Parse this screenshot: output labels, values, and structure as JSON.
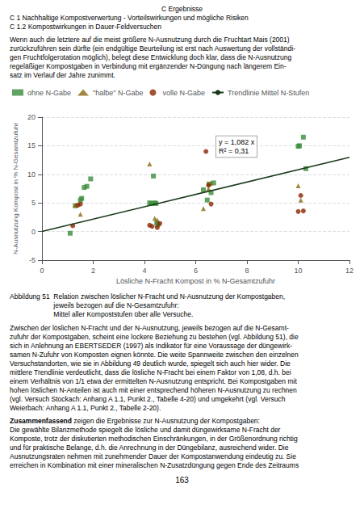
{
  "header": [
    "C Ergebnisse",
    "C 1 Nachhaltige Kompostverwertung - Vorteilswirkungen und mögliche Risiken",
    "C 1.2 Kompostwirkungen in Dauer-Feldversuchen"
  ],
  "text_before": "Wenn auch die letztere auf die meist größere N-Ausnutzung durch die Fruchtart Mais (2001)\nzurückzuführen sein dürfte (ein endgültige Beurteilung ist erst nach Auswertung der vollständi-\ngen Fruchtfolgerotation möglich), belegt diese Entwicklung doch klar, dass die N-Ausnutzung\nregeläßiger Kompostgaben in Verbindung mit ergänzender N-Düngung nach längerem Ein-\nsatz im Verlauf der Jahre zunimmt.",
  "caption": [
    "Abbildung 51  Relation zwischen löslicher N-Fracht und N-Ausnutzung der Kompostgaben,",
    "                       jeweils bezogen auf die N-Gesamtzufuhr:",
    "                       Mittel aller Kompoststufen über alle Versuche."
  ],
  "text_after": "Zwischen der löslichen N-Fracht und der N-Ausnutzung, jeweils bezogen auf die N-Gesamt-\nzufuhr der Kompostgaben, scheint eine lockere Beziehung zu bestehen (vgl. Abbildung 51), die\nsich in Anlehnung an EBERTSEDER (1997) als Indikator für eine Voraussage der düngewirk-\nsamen N-Zufuhr von Komposten eignen könnte. Die weite Spannweite zwischen den einzelnen\nVersuchstandorten, wie sie in Abbildung 49 deutlich wurde, spiegelt sich auch hier wider. Die\nmittlere Trendlinie verdeutlicht, dass die lösliche N-Fracht bei einem Faktor von 1,08, d.h. bei\neinem Verhältnis von 1/1 etwa der ermittelten N-Ausnutzung entspricht. Bei Kompostgaben mit\nhohen löslichen N-Anteilen ist auch mit einer entsprechend höheren N-Ausnutzung zu rechnen\n(vgl. Versuch Stockach: Anhang A 1.1, Punkt 2., Tabelle 4-20) und umgekehrt (vgl. Versuch\nWeierbach: Anhang A 1.1, Punkt 2., Tabelle 2-20).",
  "summary_bold": "Zusammenfassend",
  "summary": " zeigen die Ergebnisse zur N-Ausnutzung der Kompostgaben:",
  "text_end": "Die gewählte Bilanzmethode spiegelt die lösliche und damit düngewirksame N-Fracht der\nKomposte, trotz der diskutierten methodischen Einschränkungen, in der Größenordnung richtig\nund für praktische Belange, d.h. die Anrechnung in der Düngebilanz, ausreichend wider. Die\nAusnutzungsraten nehmen mit zunehmender Dauer der Kompostanwendung eindeutig zu. Sie\nerreichen in Kombination mit einer mineralischen N-Zusatzdüngung gegen Ende des Zeitraums",
  "page_number": "163",
  "chart_data": {
    "type": "scatter",
    "xlabel": "Lösliche N-Fracht Kompost in % N-Gesamtzufuhr",
    "ylabel": "N-Ausnutzung Kompost in % N-Gesamtzufuhr",
    "xlim": [
      0,
      12
    ],
    "ylim": [
      -5,
      20
    ],
    "xticks": [
      0,
      2,
      4,
      6,
      8,
      10,
      12
    ],
    "yticks": [
      -5,
      0,
      5,
      10,
      15,
      20
    ],
    "grid": true,
    "legend": "upper left",
    "series": [
      {
        "name": "ohne N-Gabe",
        "color": "#3A8C3A",
        "marker": "square",
        "x": [
          1.1,
          1.3,
          1.5,
          1.55,
          1.65,
          1.75,
          1.9,
          4.2,
          4.28,
          4.35,
          4.4,
          4.45,
          4.48,
          4.52,
          6.3,
          6.45,
          6.52,
          6.6,
          6.7,
          10.0,
          10.05,
          10.2,
          10.3
        ],
        "values": [
          -0.3,
          4.5,
          5.5,
          5.8,
          7.7,
          7.9,
          9.2,
          5.0,
          4.9,
          9.7,
          5.0,
          4.9,
          1.5,
          1.2,
          7.3,
          5.5,
          8.3,
          6.8,
          8.5,
          14.9,
          15.0,
          16.5,
          11.0
        ]
      },
      {
        "name": "\"halbe\" N-Gabe",
        "color": "#8B6914",
        "marker": "triangle",
        "x": [
          1.3,
          1.5,
          4.2,
          4.4,
          4.5,
          6.3,
          6.5,
          6.6,
          10.0,
          10.1
        ],
        "values": [
          4.6,
          3.0,
          11.8,
          2.3,
          2.0,
          4.0,
          7.5,
          8.5,
          8.0,
          5.5
        ]
      },
      {
        "name": "volle N-Gabe",
        "color": "#8B2500",
        "marker": "circle",
        "x": [
          1.2,
          1.4,
          1.5,
          4.2,
          4.3,
          4.5,
          4.6,
          6.4,
          6.5,
          6.6,
          10.0,
          10.1,
          10.2
        ],
        "values": [
          1.0,
          4.6,
          4.8,
          1.1,
          0.9,
          0.7,
          1.4,
          14.0,
          8.1,
          4.8,
          3.5,
          6.3,
          3.6
        ]
      },
      {
        "name": "Trendlinie Mittel N-Stufen",
        "type": "line",
        "color": "#1A3A1A",
        "line_style": "solid",
        "x": [
          0,
          12
        ],
        "values": [
          0,
          12.984
        ]
      }
    ],
    "annotations": [
      "y = 1,082 x\nR² = 0,31"
    ]
  }
}
